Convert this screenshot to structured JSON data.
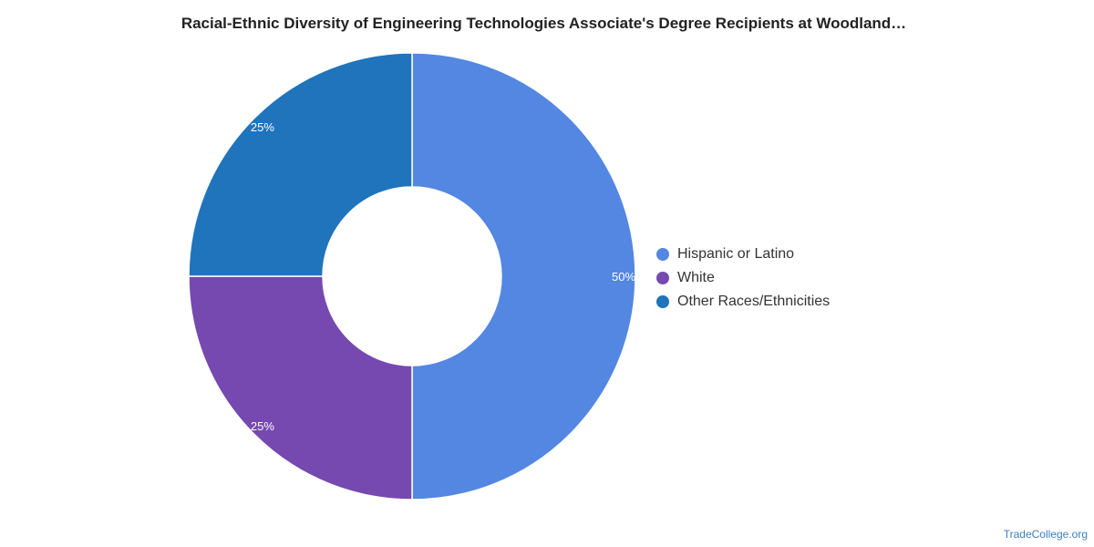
{
  "chart_data": {
    "type": "pie",
    "donut": true,
    "title": "Racial-Ethnic Diversity of Engineering Technologies Associate's Degree Recipients at Woodland…",
    "slices": [
      {
        "label": "Hispanic or Latino",
        "value": 50,
        "display": "50%",
        "color": "#5487e2"
      },
      {
        "label": "White",
        "value": 25,
        "display": "25%",
        "color": "#7549b0"
      },
      {
        "label": "Other Races/Ethnicities",
        "value": 25,
        "display": "25%",
        "color": "#1f74bc"
      }
    ],
    "legend_position": "right"
  },
  "watermark": "TradeCollege.org"
}
